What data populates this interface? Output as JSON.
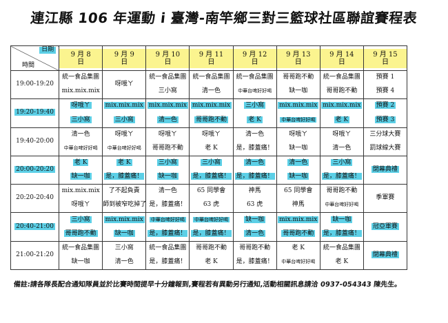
{
  "title": "連江縣 106 年運動 i 臺灣-南竿鄉三對三籃球社區聯誼賽程表",
  "corner": {
    "day": "日期",
    "time": "時間"
  },
  "days": [
    "9 月 8 日",
    "9 月 9 日",
    "9 月 10 日",
    "9 月 11 日",
    "9 月 12 日",
    "9 月 13 日",
    "9 月 14 日",
    "9 月 15 日"
  ],
  "rows": [
    {
      "time": "19:00-19:20",
      "time_hl": false,
      "cells": [
        [
          {
            "t": "統一食品集團"
          },
          {
            "t": "mix.mix.mix"
          }
        ],
        [
          {
            "t": "呀哦ㄚ"
          }
        ],
        [
          {
            "t": "統一食品集團"
          },
          {
            "t": "三小窩"
          }
        ],
        [
          {
            "t": "統一食品集團"
          },
          {
            "t": "清一色"
          }
        ],
        [
          {
            "t": "統一食品集團"
          },
          {
            "t": "中華台啤好好喝",
            "sm": true
          }
        ],
        [
          {
            "t": "哥哥跑不動"
          },
          {
            "t": "缺一咖"
          }
        ],
        [
          {
            "t": "統一食品集團"
          },
          {
            "t": "哥哥跑不動"
          }
        ],
        [
          {
            "t": "預賽 1"
          },
          {
            "t": "預賽 4"
          }
        ]
      ]
    },
    {
      "time": "19:20-19:40",
      "time_hl": true,
      "cells": [
        [
          {
            "t": "呀哦ㄚ",
            "h": true
          },
          {
            "t": "三小窩",
            "h": true
          }
        ],
        [
          {
            "t": "mix.mix.mix",
            "h": true
          },
          {
            "t": "三小窩",
            "h": true
          }
        ],
        [
          {
            "t": "mix.mix.mix",
            "h": true
          },
          {
            "t": "清一色",
            "h": true
          }
        ],
        [
          {
            "t": "mix.mix.mix",
            "h": true
          },
          {
            "t": "哥哥跑不動",
            "h": true
          }
        ],
        [
          {
            "t": "三小窩",
            "h": true
          },
          {
            "t": "老 K",
            "h": true
          }
        ],
        [
          {
            "t": "mix.mix.mix",
            "h": true
          },
          {
            "t": "中華台啤好好喝",
            "h": true,
            "sm": true
          }
        ],
        [
          {
            "t": "mix.mix.mix",
            "h": true
          },
          {
            "t": "老 K",
            "h": true
          }
        ],
        [
          {
            "t": "預賽 2",
            "h": true
          },
          {
            "t": "預賽 3",
            "h": true
          }
        ]
      ]
    },
    {
      "time": "19:40-20:00",
      "time_hl": false,
      "cells": [
        [
          {
            "t": "清一色"
          },
          {
            "t": "中華台啤好好喝",
            "sm": true
          }
        ],
        [
          {
            "t": "呀哦ㄚ"
          },
          {
            "t": "中華台啤好好喝",
            "sm": true
          }
        ],
        [
          {
            "t": "呀哦ㄚ"
          },
          {
            "t": "哥哥跑不動"
          }
        ],
        [
          {
            "t": "呀哦ㄚ"
          },
          {
            "t": "老 K"
          }
        ],
        [
          {
            "t": "清一色"
          },
          {
            "t": "是，膝蓋痛！"
          }
        ],
        [
          {
            "t": "呀哦ㄚ"
          },
          {
            "t": "缺一咖"
          }
        ],
        [
          {
            "t": "呀哦ㄚ"
          },
          {
            "t": "清一色"
          }
        ],
        [
          {
            "t": "三分球大賽"
          },
          {
            "t": "罰球線大賽"
          }
        ]
      ]
    },
    {
      "time": "20:00-20:20",
      "time_hl": true,
      "cells": [
        [
          {
            "t": "老 K",
            "h": true
          },
          {
            "t": "缺一咖",
            "h": true
          }
        ],
        [
          {
            "t": "老 K",
            "h": true
          },
          {
            "t": "是，膝蓋痛！",
            "h": true
          }
        ],
        [
          {
            "t": "三小窩",
            "h": true
          },
          {
            "t": "缺一咖",
            "h": true
          }
        ],
        [
          {
            "t": "三小窩",
            "h": true
          },
          {
            "t": "是，膝蓋痛！",
            "h": true
          }
        ],
        [
          {
            "t": "清一色",
            "h": true
          },
          {
            "t": "是，膝蓋痛！",
            "h": true
          }
        ],
        [
          {
            "t": "清一色",
            "h": true
          },
          {
            "t": "缺一咖",
            "h": true
          }
        ],
        [
          {
            "t": "三小窩",
            "h": true
          },
          {
            "t": "是，膝蓋痛！",
            "h": true
          }
        ],
        [
          {
            "t": "閉幕典禮",
            "h": true
          }
        ]
      ]
    },
    {
      "time": "20:20-20:40",
      "time_hl": false,
      "cells": [
        [
          {
            "t": "mix.mix.mix"
          },
          {
            "t": "呀哦ㄚ"
          }
        ],
        [
          {
            "t": "了不起負責"
          },
          {
            "t": "師到被窄吃掉了"
          }
        ],
        [
          {
            "t": "清一色"
          },
          {
            "t": "是，膝蓋痛！"
          }
        ],
        [
          {
            "t": "65 同學會"
          },
          {
            "t": "63 虎"
          }
        ],
        [
          {
            "t": "神馬"
          },
          {
            "t": "63 虎"
          }
        ],
        [
          {
            "t": "65 同學會"
          },
          {
            "t": "神馬"
          }
        ],
        [
          {
            "t": "哥哥跑不動"
          },
          {
            "t": "中華台啤好好喝",
            "sm": true
          }
        ],
        [
          {
            "t": "季軍賽"
          }
        ]
      ]
    },
    {
      "time": "20:40-21:00",
      "time_hl": true,
      "cells": [
        [
          {
            "t": "三小窩",
            "h": true
          },
          {
            "t": "哥哥跑不動",
            "h": true
          }
        ],
        [
          {
            "t": "mix.mix.mix",
            "h": true
          },
          {
            "t": "缺一咖",
            "h": true
          }
        ],
        [
          {
            "t": "中華台啤好好喝",
            "h": true,
            "sm": true
          },
          {
            "t": "是，膝蓋痛！",
            "h": true
          }
        ],
        [
          {
            "t": "中華台啤好好喝",
            "h": true,
            "sm": true
          },
          {
            "t": "是，膝蓋痛！",
            "h": true
          }
        ],
        [
          {
            "t": "缺一咖",
            "h": true
          },
          {
            "t": "清一色",
            "h": true
          }
        ],
        [
          {
            "t": "mix.mix.mix",
            "h": true
          },
          {
            "t": "哥哥跑不動",
            "h": true
          }
        ],
        [
          {
            "t": "缺一咖",
            "h": true
          },
          {
            "t": "是，膝蓋痛！",
            "h": true
          }
        ],
        [
          {
            "t": "冠亞軍賽",
            "h": true
          }
        ]
      ]
    },
    {
      "time": "21:00-21:20",
      "time_hl": false,
      "cells": [
        [
          {
            "t": "統一食品集團"
          },
          {
            "t": "缺一咖"
          }
        ],
        [
          {
            "t": "三小窩"
          },
          {
            "t": "清一色"
          }
        ],
        [
          {
            "t": "統一食品集團"
          },
          {
            "t": "是，膝蓋痛！"
          }
        ],
        [
          {
            "t": "哥哥跑不動"
          },
          {
            "t": "老 K"
          }
        ],
        [
          {
            "t": "哥哥跑不動"
          },
          {
            "t": "是，膝蓋痛！"
          }
        ],
        [
          {
            "t": "老 K"
          },
          {
            "t": "中華台啤好好喝",
            "sm": true
          }
        ],
        [
          {
            "t": "統一食品集團"
          },
          {
            "t": "老 K"
          }
        ],
        [
          {
            "t": "閉幕典禮",
            "h": true
          }
        ]
      ]
    }
  ],
  "note": "備註:請各隊長配合通知隊員並於比賽時間提早十分鐘報到,賽程若有異動另行通知,活動相關訊息請洽 0937-054343 陳先生。",
  "colors": {
    "highlight_cyan": "#5ccfe6",
    "header_yellow": "#fbf48f"
  }
}
